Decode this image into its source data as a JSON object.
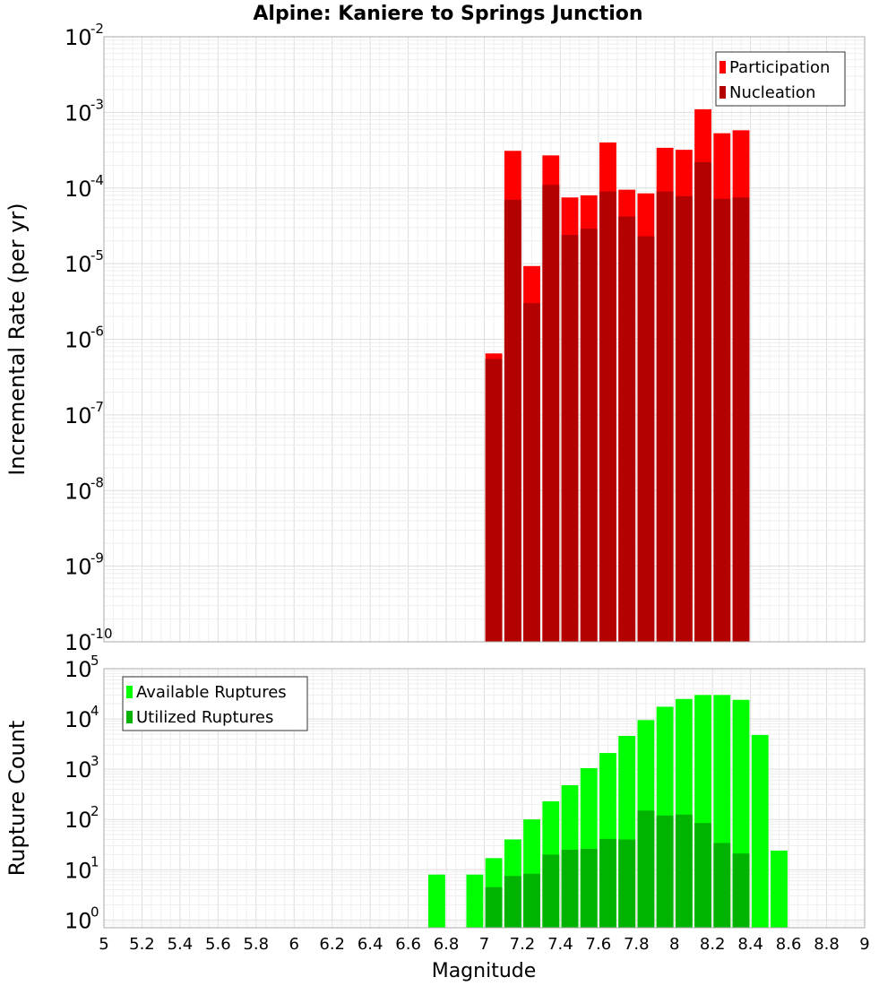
{
  "title": "Alpine: Kaniere to Springs Junction",
  "xlabel": "Magnitude",
  "chart_data": [
    {
      "type": "bar",
      "panel": "top",
      "ylabel": "Incremental Rate (per yr)",
      "yscale": "log",
      "xlim": [
        5,
        9
      ],
      "ylim": [
        1e-10,
        0.01
      ],
      "grid": true,
      "legend": "top-right",
      "colors": {
        "Participation": "#ff0000",
        "Nucleation": "#b30000"
      },
      "x": [
        7.05,
        7.15,
        7.25,
        7.35,
        7.45,
        7.55,
        7.65,
        7.75,
        7.85,
        7.95,
        8.05,
        8.15,
        8.25,
        8.35
      ],
      "series": [
        {
          "name": "Participation",
          "values": [
            6.5e-07,
            0.00031,
            9.3e-06,
            0.00027,
            7.5e-05,
            8e-05,
            0.0004,
            9.5e-05,
            8.5e-05,
            0.00034,
            0.00032,
            0.0011,
            0.00053,
            0.00058
          ]
        },
        {
          "name": "Nucleation",
          "values": [
            5.5e-07,
            7e-05,
            3e-06,
            0.00011,
            2.4e-05,
            2.9e-05,
            9e-05,
            4.2e-05,
            2.3e-05,
            9e-05,
            7.8e-05,
            0.00022,
            7.2e-05,
            7.5e-05
          ]
        }
      ]
    },
    {
      "type": "bar",
      "panel": "bottom",
      "ylabel": "Rupture Count",
      "yscale": "log",
      "xlim": [
        5,
        9
      ],
      "ylim": [
        0.7,
        100000.0
      ],
      "grid": true,
      "legend": "top-left",
      "colors": {
        "Available Ruptures": "#00ff00",
        "Utilized Ruptures": "#00b300"
      },
      "x": [
        6.75,
        6.95,
        7.05,
        7.15,
        7.25,
        7.35,
        7.45,
        7.55,
        7.65,
        7.75,
        7.85,
        7.95,
        8.05,
        8.15,
        8.25,
        8.35,
        8.45,
        8.55
      ],
      "series": [
        {
          "name": "Available Ruptures",
          "values": [
            8,
            8,
            17,
            40,
            100,
            230,
            480,
            1050,
            2100,
            4600,
            9500,
            17500,
            25000,
            30000,
            30000,
            24000,
            4800,
            24
          ]
        },
        {
          "name": "Utilized Ruptures",
          "values": [
            0,
            0,
            4.5,
            7.5,
            8.3,
            20,
            25,
            26,
            41,
            40,
            150,
            120,
            125,
            85,
            34,
            21,
            0,
            0
          ]
        }
      ]
    }
  ],
  "xticks": [
    "5",
    "5.2",
    "5.4",
    "5.6",
    "5.8",
    "6",
    "6.2",
    "6.4",
    "6.6",
    "6.8",
    "7",
    "7.2",
    "7.4",
    "7.6",
    "7.8",
    "8",
    "8.2",
    "8.4",
    "8.6",
    "8.8",
    "9"
  ],
  "yticks_top": [
    "-10",
    "-9",
    "-8",
    "-7",
    "-6",
    "-5",
    "-4",
    "-3",
    "-2"
  ],
  "yticks_bottom": [
    "0",
    "1",
    "2",
    "3",
    "4",
    "5"
  ],
  "ytick_base": "10"
}
